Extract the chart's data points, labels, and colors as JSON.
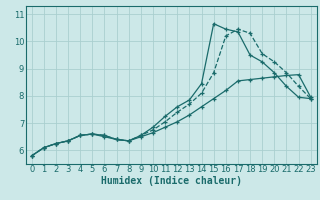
{
  "xlabel": "Humidex (Indice chaleur)",
  "bg_color": "#cce8e8",
  "grid_color": "#aacfcf",
  "line_color": "#1a6b6b",
  "xlim": [
    -0.5,
    23.5
  ],
  "ylim": [
    5.5,
    11.3
  ],
  "yticks": [
    6,
    7,
    8,
    9,
    10,
    11
  ],
  "xticks": [
    0,
    1,
    2,
    3,
    4,
    5,
    6,
    7,
    8,
    9,
    10,
    11,
    12,
    13,
    14,
    15,
    16,
    17,
    18,
    19,
    20,
    21,
    22,
    23
  ],
  "line1_x": [
    0,
    1,
    2,
    3,
    4,
    5,
    6,
    7,
    8,
    9,
    10,
    11,
    12,
    13,
    14,
    15,
    16,
    17,
    18,
    19,
    20,
    21,
    22,
    23
  ],
  "line1_y": [
    5.8,
    6.1,
    6.25,
    6.35,
    6.55,
    6.6,
    6.55,
    6.4,
    6.35,
    6.55,
    6.85,
    7.25,
    7.6,
    7.85,
    8.45,
    10.65,
    10.45,
    10.35,
    9.5,
    9.25,
    8.85,
    8.35,
    7.95,
    7.9
  ],
  "line2_x": [
    0,
    1,
    2,
    3,
    4,
    5,
    6,
    7,
    8,
    9,
    10,
    11,
    12,
    13,
    14,
    15,
    16,
    17,
    18,
    19,
    20,
    21,
    22,
    23
  ],
  "line2_y": [
    5.8,
    6.1,
    6.25,
    6.35,
    6.55,
    6.6,
    6.55,
    6.4,
    6.35,
    6.55,
    6.75,
    7.05,
    7.4,
    7.7,
    8.1,
    8.85,
    10.2,
    10.45,
    10.3,
    9.55,
    9.25,
    8.85,
    8.35,
    7.9
  ],
  "line3_x": [
    0,
    1,
    2,
    3,
    4,
    5,
    6,
    7,
    8,
    9,
    10,
    11,
    12,
    13,
    14,
    15,
    16,
    17,
    18,
    19,
    20,
    21,
    22,
    23
  ],
  "line3_y": [
    5.8,
    6.1,
    6.25,
    6.35,
    6.55,
    6.6,
    6.5,
    6.4,
    6.35,
    6.5,
    6.65,
    6.85,
    7.05,
    7.3,
    7.6,
    7.9,
    8.2,
    8.55,
    8.6,
    8.65,
    8.7,
    8.75,
    8.78,
    7.95
  ],
  "line1_style": "-",
  "line2_style": "--",
  "line3_style": "-"
}
